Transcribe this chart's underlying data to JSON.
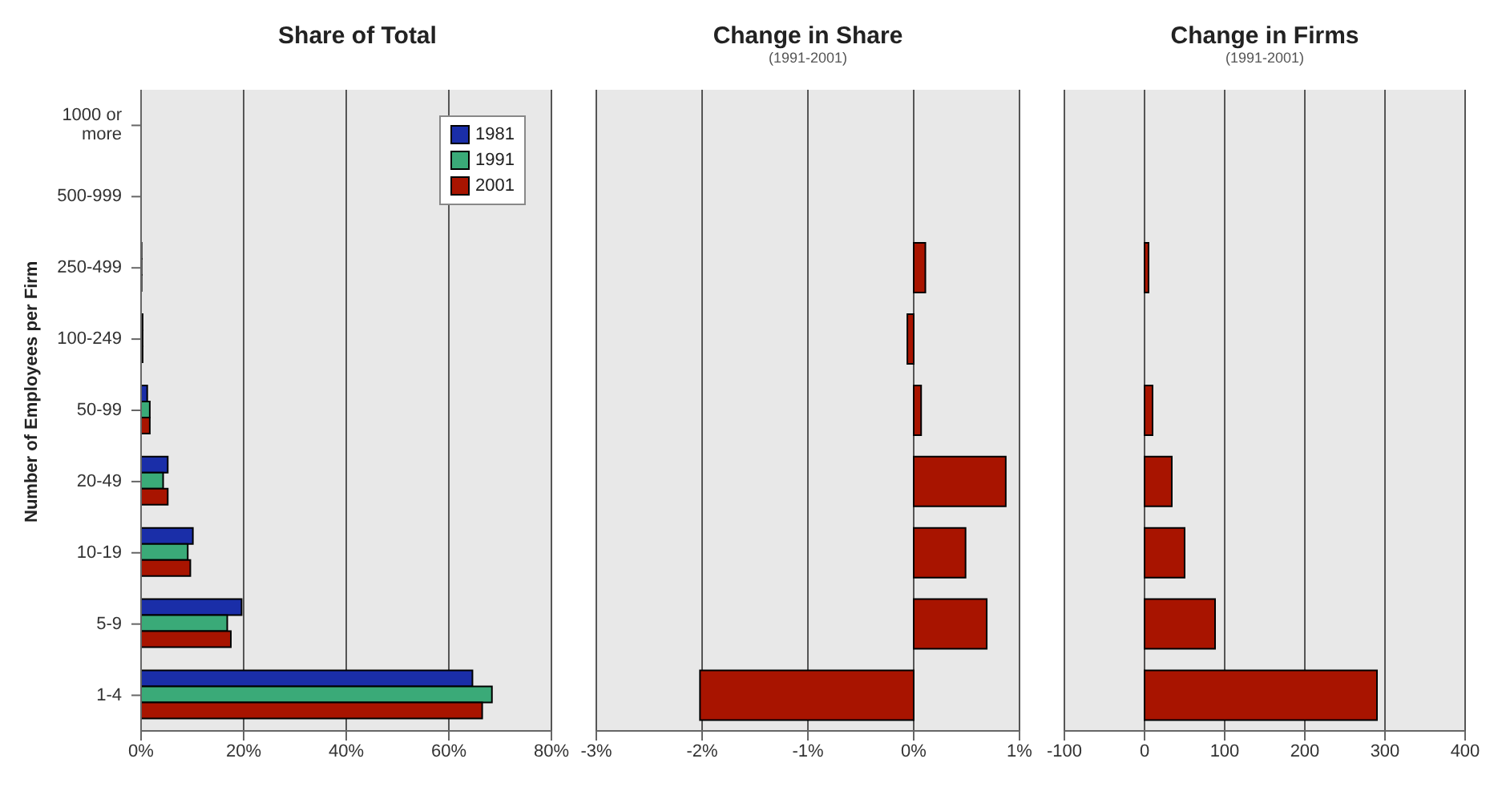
{
  "chart_data": [
    {
      "type": "bar",
      "orientation": "horizontal",
      "title": "Share of Total",
      "ylabel": "Number of Employees per Firm",
      "categories": [
        "1000 or more",
        "500-999",
        "250-499",
        "100-249",
        "50-99",
        "20-49",
        "10-19",
        "5-9",
        "1-4"
      ],
      "series": [
        {
          "name": "1981",
          "color": "#1a2ea8",
          "values": [
            0,
            0,
            0.1,
            0.3,
            1.2,
            5.2,
            10.1,
            19.6,
            64.6
          ]
        },
        {
          "name": "1991",
          "color": "#3aaa78",
          "values": [
            0,
            0,
            0.1,
            0.3,
            1.7,
            4.3,
            9.1,
            16.8,
            68.4
          ]
        },
        {
          "name": "2001",
          "color": "#a81400",
          "values": [
            0,
            0,
            0.1,
            0.3,
            1.7,
            5.2,
            9.6,
            17.5,
            66.5
          ]
        }
      ],
      "xlim": [
        0,
        80
      ],
      "xticks": [
        {
          "value": 0,
          "label": "0%"
        },
        {
          "value": 20,
          "label": "20%"
        },
        {
          "value": 40,
          "label": "40%"
        },
        {
          "value": 60,
          "label": "60%"
        },
        {
          "value": 80,
          "label": "80%"
        }
      ],
      "grid": "x",
      "legend": "top right"
    },
    {
      "type": "bar",
      "orientation": "horizontal",
      "title": "Change in Share",
      "subtitle": "(1991-2001)",
      "categories": [
        null,
        null,
        null,
        null,
        null,
        null,
        null,
        null,
        null
      ],
      "values": [
        0,
        0,
        0.11,
        -0.06,
        0.07,
        0.87,
        0.49,
        0.69,
        -2.02
      ],
      "color": "#a81400",
      "xlim": [
        -3,
        1
      ],
      "xticks": [
        {
          "value": -3,
          "label": "-3%"
        },
        {
          "value": -2,
          "label": "-2%"
        },
        {
          "value": -1,
          "label": "-1%"
        },
        {
          "value": 0,
          "label": "0%"
        },
        {
          "value": 1,
          "label": "1%"
        }
      ],
      "grid": "x",
      "tick_labels": "x"
    },
    {
      "type": "bar",
      "orientation": "horizontal",
      "title": "Change in Firms",
      "subtitle": "(1991-2001)",
      "categories": [
        null,
        null,
        null,
        null,
        null,
        null,
        null,
        null,
        null
      ],
      "values": [
        0,
        0,
        5,
        0,
        10,
        34,
        50,
        88,
        290
      ],
      "color": "#a81400",
      "xlim": [
        -100,
        400
      ],
      "xticks": [
        -100,
        0,
        100,
        200,
        300,
        400
      ],
      "grid": "x",
      "tick_labels": "x"
    }
  ]
}
